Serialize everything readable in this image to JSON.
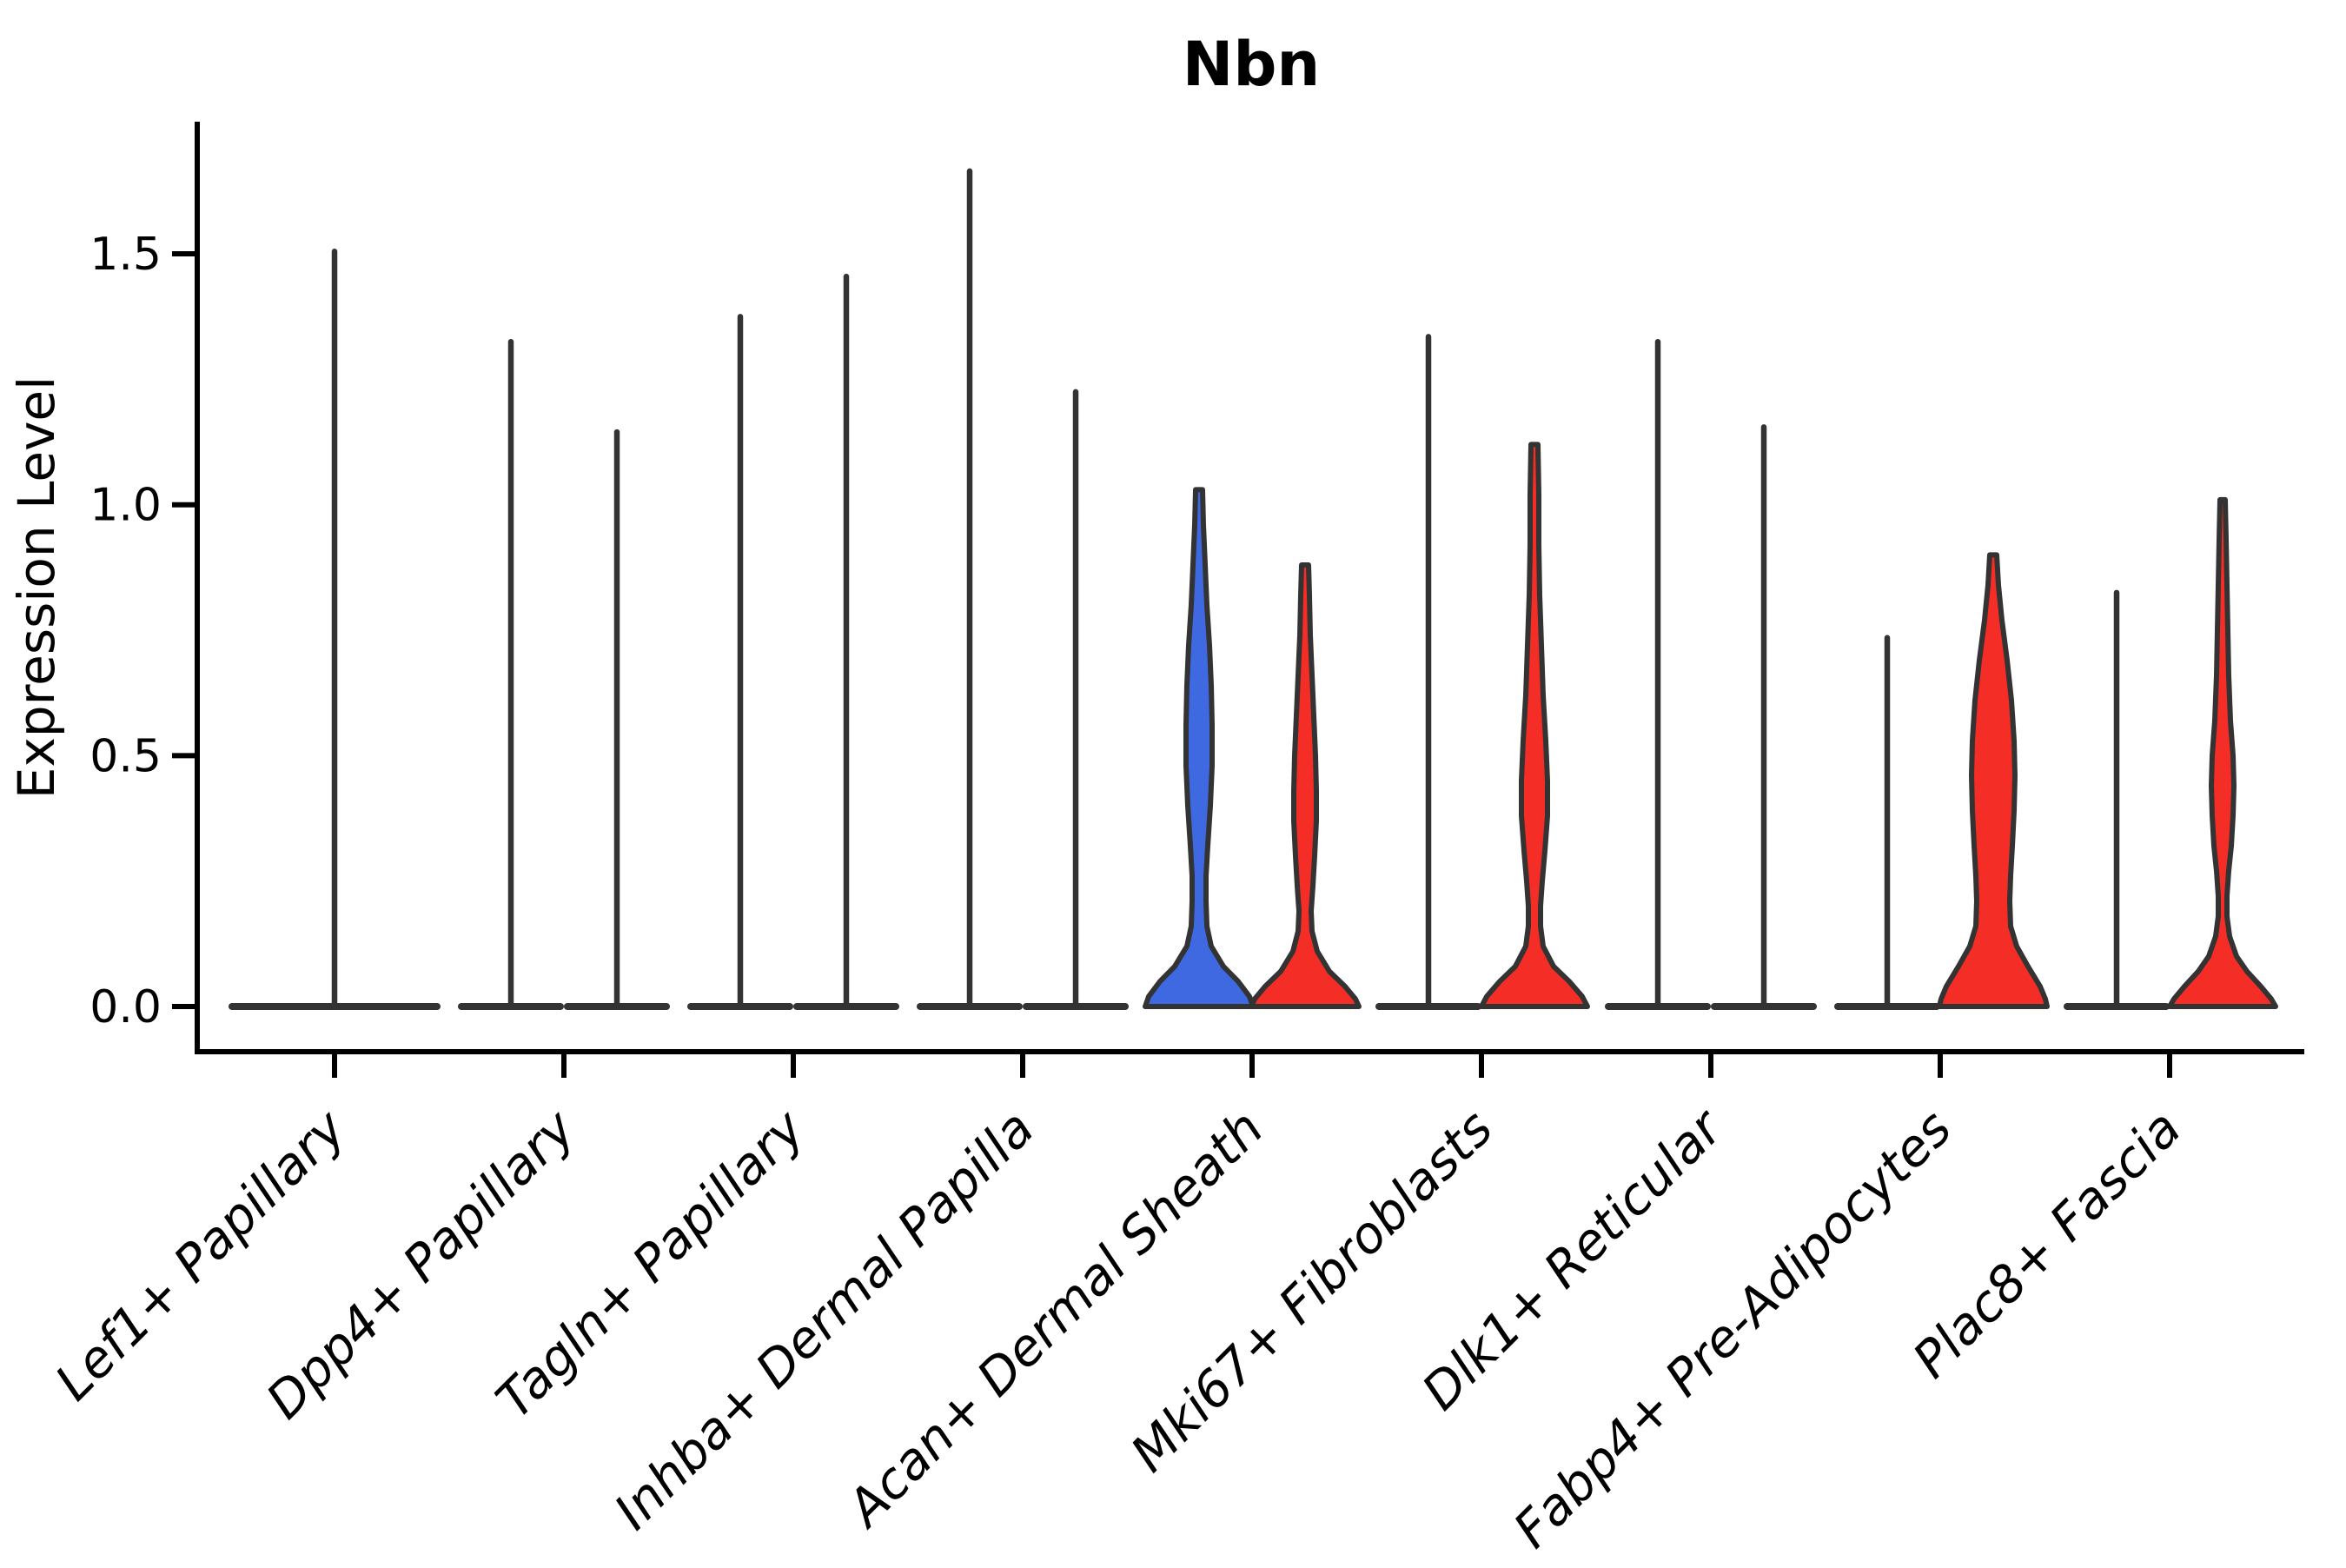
{
  "chart_data": {
    "type": "violin",
    "title": "Nbn",
    "ylabel": "Expression Level",
    "ylim": [
      0,
      1.75
    ],
    "yticks": [
      0.0,
      0.5,
      1.0,
      1.5
    ],
    "grid": false,
    "legend": "none",
    "colors": {
      "blue": "#3E69E1",
      "red": "#F42D26",
      "edge": "#333333",
      "axis": "#000000",
      "text": "#000000"
    },
    "categories": [
      {
        "label": "Lef1+ Papillary",
        "violins": [
          {
            "side": "full",
            "fill": "none",
            "shape": "spike",
            "peak": 1.51
          }
        ]
      },
      {
        "label": "Dpp4+ Papillary",
        "violins": [
          {
            "side": "left",
            "fill": "none",
            "shape": "spike",
            "peak": 1.33
          },
          {
            "side": "right",
            "fill": "none",
            "shape": "spike",
            "peak": 1.15
          }
        ]
      },
      {
        "label": "Tagln+ Papillary",
        "violins": [
          {
            "side": "left",
            "fill": "none",
            "shape": "spike",
            "peak": 1.38
          },
          {
            "side": "right",
            "fill": "none",
            "shape": "spike",
            "peak": 1.46
          }
        ]
      },
      {
        "label": "Inhba+ Dermal Papilla",
        "violins": [
          {
            "side": "left",
            "fill": "none",
            "shape": "spike",
            "peak": 1.67
          },
          {
            "side": "right",
            "fill": "none",
            "shape": "spike",
            "peak": 1.23
          }
        ]
      },
      {
        "label": "Acan+ Dermal Sheath",
        "violins": [
          {
            "side": "left",
            "fill": "blue",
            "shape": "violin",
            "peak": 1.03,
            "profile": [
              [
                1.03,
                4
              ],
              [
                0.96,
                5
              ],
              [
                0.88,
                7
              ],
              [
                0.8,
                9
              ],
              [
                0.72,
                12
              ],
              [
                0.64,
                14
              ],
              [
                0.56,
                15
              ],
              [
                0.48,
                15
              ],
              [
                0.4,
                13
              ],
              [
                0.32,
                10
              ],
              [
                0.26,
                8
              ],
              [
                0.21,
                8
              ],
              [
                0.16,
                9
              ],
              [
                0.12,
                14
              ],
              [
                0.08,
                28
              ],
              [
                0.05,
                45
              ],
              [
                0.02,
                58
              ],
              [
                0,
                62
              ]
            ]
          },
          {
            "side": "right",
            "fill": "red",
            "shape": "violin",
            "peak": 0.88,
            "profile": [
              [
                0.88,
                4
              ],
              [
                0.82,
                5
              ],
              [
                0.74,
                6
              ],
              [
                0.66,
                8
              ],
              [
                0.58,
                10
              ],
              [
                0.5,
                12
              ],
              [
                0.43,
                13
              ],
              [
                0.37,
                13
              ],
              [
                0.3,
                11
              ],
              [
                0.24,
                9
              ],
              [
                0.19,
                7
              ],
              [
                0.15,
                8
              ],
              [
                0.11,
                14
              ],
              [
                0.07,
                28
              ],
              [
                0.04,
                46
              ],
              [
                0.015,
                58
              ],
              [
                0,
                62
              ]
            ]
          }
        ]
      },
      {
        "label": "Mki67+ Fibroblasts",
        "violins": [
          {
            "side": "left",
            "fill": "none",
            "shape": "spike",
            "peak": 1.34
          },
          {
            "side": "right",
            "fill": "red",
            "shape": "violin",
            "peak": 1.12,
            "profile": [
              [
                1.12,
                4
              ],
              [
                1.02,
                5
              ],
              [
                0.92,
                5
              ],
              [
                0.82,
                6
              ],
              [
                0.72,
                8
              ],
              [
                0.62,
                10
              ],
              [
                0.53,
                13
              ],
              [
                0.45,
                15
              ],
              [
                0.38,
                15
              ],
              [
                0.31,
                12
              ],
              [
                0.25,
                9
              ],
              [
                0.2,
                7
              ],
              [
                0.16,
                7
              ],
              [
                0.12,
                10
              ],
              [
                0.08,
                22
              ],
              [
                0.05,
                40
              ],
              [
                0.02,
                55
              ],
              [
                0,
                61
              ]
            ]
          }
        ]
      },
      {
        "label": "Dlk1+ Reticular",
        "violins": [
          {
            "side": "left",
            "fill": "none",
            "shape": "spike",
            "peak": 1.33
          },
          {
            "side": "right",
            "fill": "none",
            "shape": "spike",
            "peak": 1.16
          }
        ]
      },
      {
        "label": "Fabp4+ Pre-Adipocytes",
        "violins": [
          {
            "side": "left",
            "fill": "none",
            "shape": "spike",
            "peak": 0.74
          },
          {
            "side": "right",
            "fill": "red",
            "shape": "violin",
            "peak": 0.9,
            "profile": [
              [
                0.9,
                4
              ],
              [
                0.84,
                6
              ],
              [
                0.77,
                10
              ],
              [
                0.69,
                16
              ],
              [
                0.61,
                21
              ],
              [
                0.53,
                24
              ],
              [
                0.46,
                25
              ],
              [
                0.39,
                24
              ],
              [
                0.32,
                22
              ],
              [
                0.26,
                20
              ],
              [
                0.21,
                19
              ],
              [
                0.16,
                20
              ],
              [
                0.12,
                27
              ],
              [
                0.08,
                40
              ],
              [
                0.04,
                54
              ],
              [
                0.015,
                60
              ],
              [
                0,
                62
              ]
            ]
          }
        ]
      },
      {
        "label": "Plac8+ Fascia",
        "violins": [
          {
            "side": "left",
            "fill": "none",
            "shape": "spike",
            "peak": 0.83
          },
          {
            "side": "right",
            "fill": "red",
            "shape": "violin",
            "peak": 1.01,
            "profile": [
              [
                1.01,
                3
              ],
              [
                0.93,
                4
              ],
              [
                0.84,
                5
              ],
              [
                0.75,
                6
              ],
              [
                0.66,
                7
              ],
              [
                0.57,
                9
              ],
              [
                0.5,
                12
              ],
              [
                0.44,
                13
              ],
              [
                0.38,
                12
              ],
              [
                0.32,
                10
              ],
              [
                0.27,
                7
              ],
              [
                0.22,
                5
              ],
              [
                0.18,
                5
              ],
              [
                0.14,
                8
              ],
              [
                0.1,
                16
              ],
              [
                0.07,
                28
              ],
              [
                0.04,
                44
              ],
              [
                0.015,
                56
              ],
              [
                0,
                61
              ]
            ]
          }
        ]
      }
    ]
  }
}
